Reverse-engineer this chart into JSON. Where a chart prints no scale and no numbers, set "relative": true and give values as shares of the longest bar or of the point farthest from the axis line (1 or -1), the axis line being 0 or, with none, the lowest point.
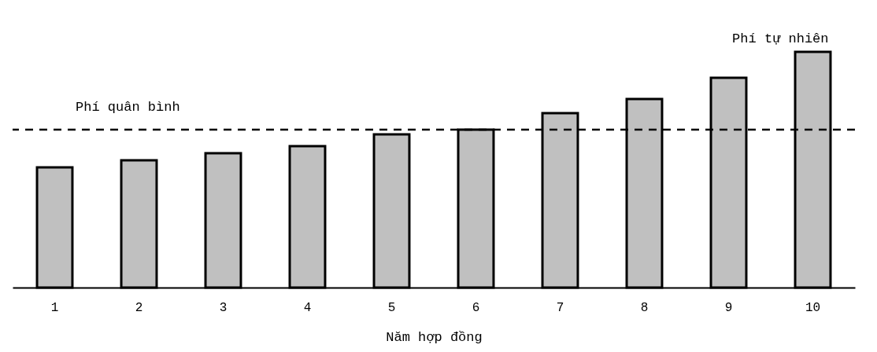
{
  "chart_data": {
    "type": "bar",
    "relative": true,
    "xlabel": "Năm hợp đồng",
    "categories": [
      "1",
      "2",
      "3",
      "4",
      "5",
      "6",
      "7",
      "8",
      "9",
      "10"
    ],
    "series": [
      {
        "color": "#c0c0c0",
        "values": [
          0.51,
          0.54,
          0.57,
          0.6,
          0.65,
          0.67,
          0.74,
          0.8,
          0.89,
          1
        ]
      }
    ],
    "ref_lines": [
      {
        "axis": "y",
        "value": 0.67,
        "label": "Phí quân bình",
        "color": "#000000",
        "line_style": "dashed"
      }
    ],
    "annotations": [
      {
        "text": "Phí tự nhiên",
        "x": "10",
        "y": 1
      }
    ]
  }
}
